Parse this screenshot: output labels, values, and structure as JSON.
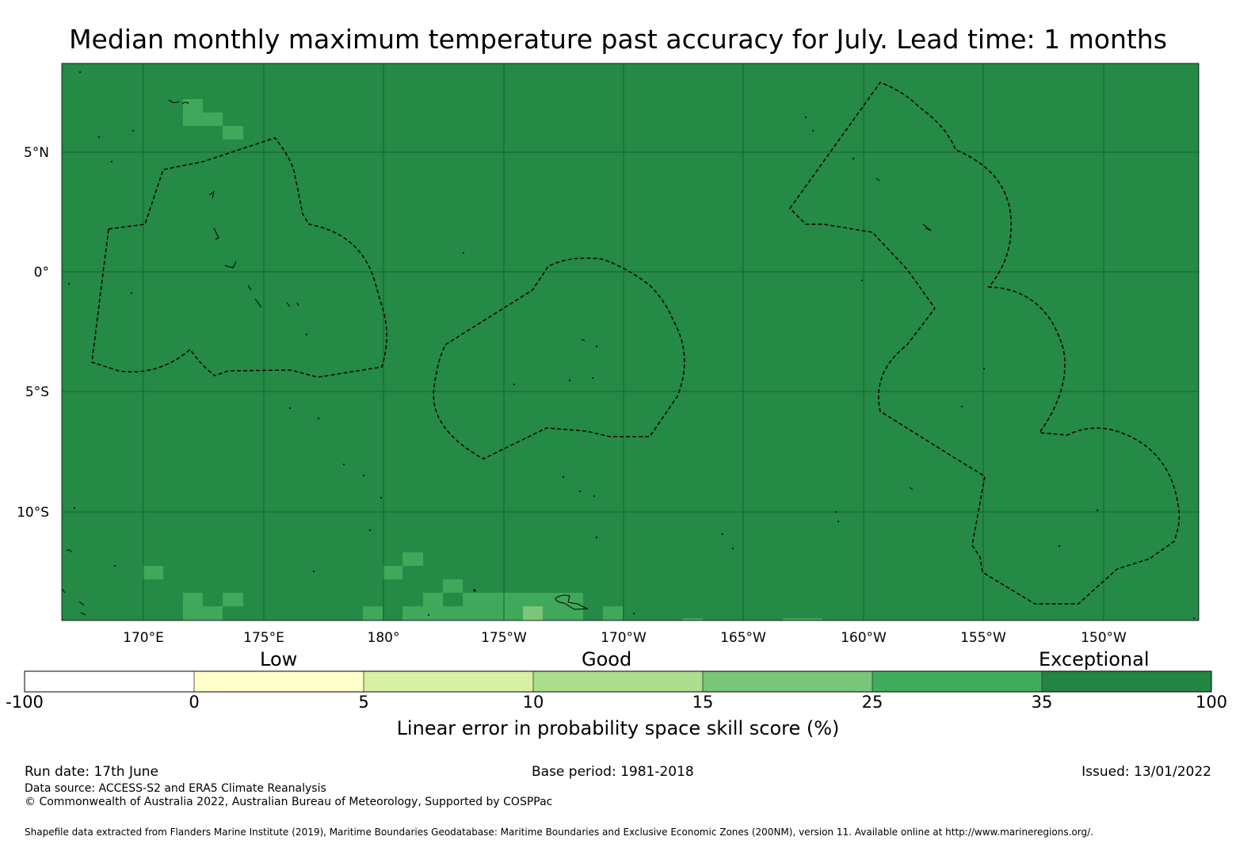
{
  "title": "Median monthly maximum temperature past accuracy for July. Lead time: 1 months",
  "map": {
    "lat_range": [
      -14.5,
      8.7
    ],
    "lon_range": [
      166.6,
      214.0
    ],
    "latitude_labels": [
      "5°N",
      "0°",
      "5°S",
      "10°S"
    ],
    "longitude_labels": [
      "170°E",
      "175°E",
      "180°",
      "175°W",
      "170°W",
      "165°W",
      "160°W",
      "155°W",
      "150°W"
    ],
    "background_category": "Exceptional (35 to 100)",
    "colors": {
      "ocean": "#248a45",
      "gridline": "#1a5e30",
      "cell_25_35": "#40a85a",
      "cell_15_25": "#7bc67a",
      "boundary": "#000000"
    }
  },
  "colorbar": {
    "category_labels": [
      "Low",
      "Good",
      "Exceptional"
    ],
    "tick_labels": [
      "-100",
      "0",
      "5",
      "10",
      "15",
      "25",
      "35",
      "100"
    ],
    "colors": [
      "#ffffff",
      "#ffffcc",
      "#d9f0a3",
      "#addd8e",
      "#78c679",
      "#41ab5d",
      "#238443"
    ],
    "title": "Linear error in probability space skill score (%)"
  },
  "footer": {
    "run_date": "Run date: 17th June",
    "base_period": "Base period: 1981-2018",
    "issued": "Issued: 13/01/2022",
    "data_source": "Data source: ACCESS-S2 and ERA5 Climate Reanalysis",
    "copyright": "© Commonwealth of Australia 2022, Australian Bureau of Meteorology, Supported by COSPPac",
    "shapefile": "Shapefile data extracted from Flanders Marine Institute (2019), Maritime Boundaries Geodatabase: Maritime Boundaries and Exclusive Economic Zones (200NM), version 11. Available online at http://www.marineregions.org/."
  }
}
